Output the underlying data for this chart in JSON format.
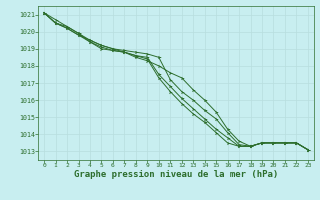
{
  "background_color": "#c8eef0",
  "grid_color": "#b8dede",
  "line_color": "#2d6e2d",
  "marker_color": "#2d6e2d",
  "xlabel": "Graphe pression niveau de la mer (hPa)",
  "xlabel_fontsize": 6.5,
  "ylim": [
    1012.5,
    1021.5
  ],
  "xlim": [
    -0.5,
    23.5
  ],
  "yticks": [
    1013,
    1014,
    1015,
    1016,
    1017,
    1018,
    1019,
    1020,
    1021
  ],
  "xticks": [
    0,
    1,
    2,
    3,
    4,
    5,
    6,
    7,
    8,
    9,
    10,
    11,
    12,
    13,
    14,
    15,
    16,
    17,
    18,
    19,
    20,
    21,
    22,
    23
  ],
  "series": [
    [
      1021.1,
      1020.7,
      1020.3,
      1019.9,
      1019.4,
      1019.0,
      1018.9,
      1018.8,
      1018.5,
      1018.3,
      1018.0,
      1017.6,
      1017.3,
      1016.6,
      1016.0,
      1015.3,
      1014.3,
      1013.6,
      1013.3,
      1013.5,
      1013.5,
      1013.5,
      1013.5,
      1013.1
    ],
    [
      1021.1,
      1020.5,
      1020.3,
      1019.9,
      1019.5,
      1019.2,
      1019.0,
      1018.9,
      1018.8,
      1018.7,
      1018.5,
      1017.2,
      1016.5,
      1016.0,
      1015.4,
      1014.9,
      1014.1,
      1013.4,
      1013.3,
      1013.5,
      1013.5,
      1013.5,
      1013.5,
      1013.1
    ],
    [
      1021.1,
      1020.5,
      1020.2,
      1019.8,
      1019.5,
      1019.2,
      1019.0,
      1018.8,
      1018.6,
      1018.4,
      1017.3,
      1016.5,
      1015.8,
      1015.2,
      1014.7,
      1014.1,
      1013.5,
      1013.3,
      1013.3,
      1013.5,
      1013.5,
      1013.5,
      1013.5,
      1013.1
    ],
    [
      1021.1,
      1020.5,
      1020.2,
      1019.8,
      1019.4,
      1019.1,
      1018.9,
      1018.8,
      1018.6,
      1018.5,
      1017.5,
      1016.8,
      1016.1,
      1015.5,
      1014.9,
      1014.3,
      1013.8,
      1013.3,
      1013.3,
      1013.5,
      1013.5,
      1013.5,
      1013.5,
      1013.1
    ]
  ]
}
